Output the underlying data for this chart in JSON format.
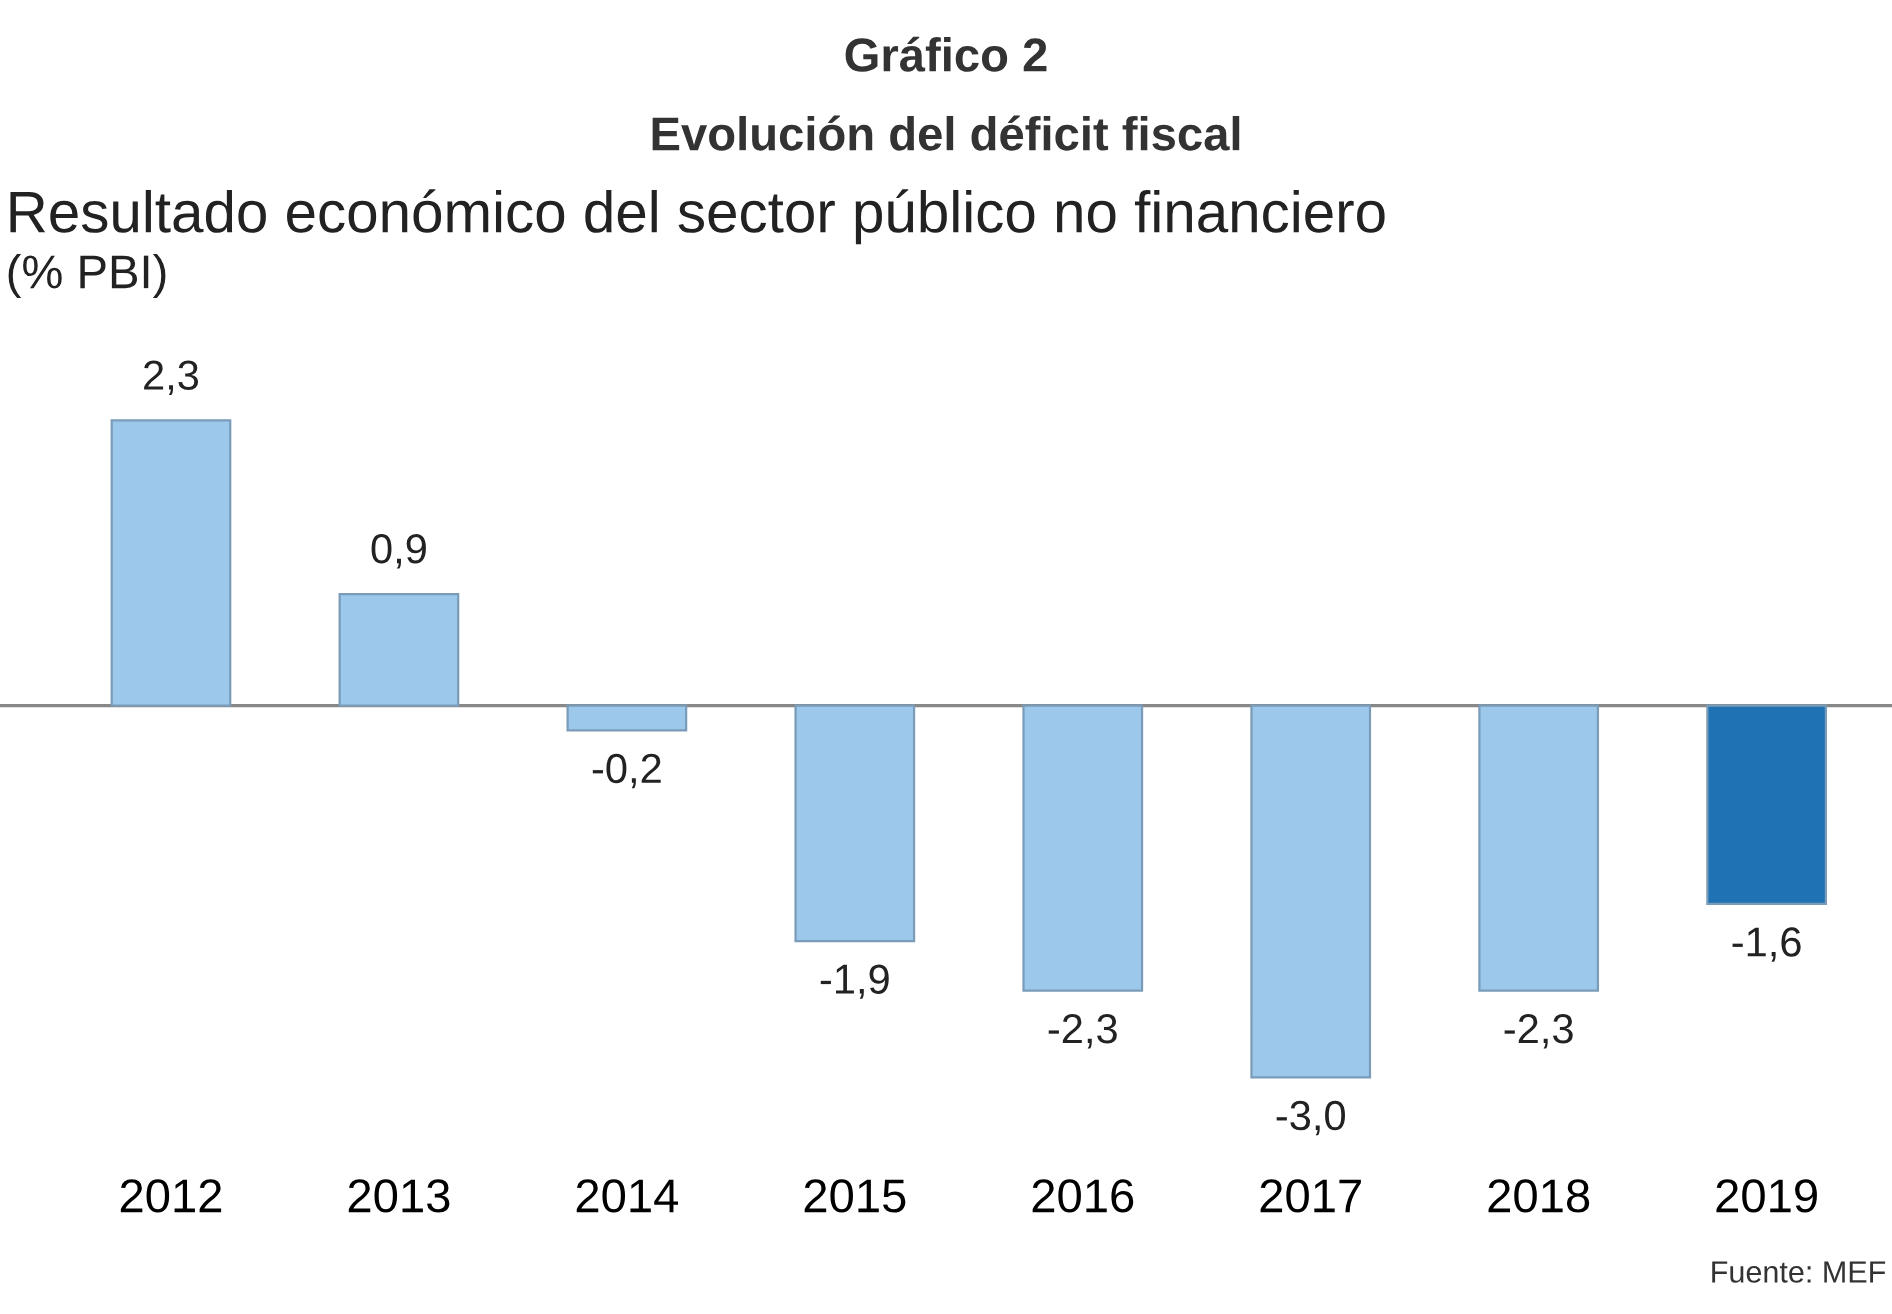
{
  "chart_data": {
    "type": "bar",
    "title": "Gráfico 2",
    "subtitle": "Evolución del déficit fiscal",
    "ylabel": "(% PBI)",
    "annotations": [
      "Resultado económico del sector público no financiero",
      "Fuente: MEF"
    ],
    "categories": [
      "2012",
      "2013",
      "2014",
      "2015",
      "2016",
      "2017",
      "2018",
      "2019"
    ],
    "values": [
      2.3,
      0.9,
      -0.2,
      -1.9,
      -2.3,
      -3.0,
      -2.3,
      -1.6
    ],
    "value_labels": [
      "2,3",
      "0,9",
      "-0,2",
      "-1,9",
      "-2,3",
      "-3,0",
      "-2,3",
      "-1,6"
    ],
    "colors": [
      "#9cc8ec",
      "#9cc8ec",
      "#9cc8ec",
      "#9cc8ec",
      "#9cc8ec",
      "#9cc8ec",
      "#9cc8ec",
      "#1f72b4"
    ],
    "tick_labels": "x",
    "grid": false
  }
}
